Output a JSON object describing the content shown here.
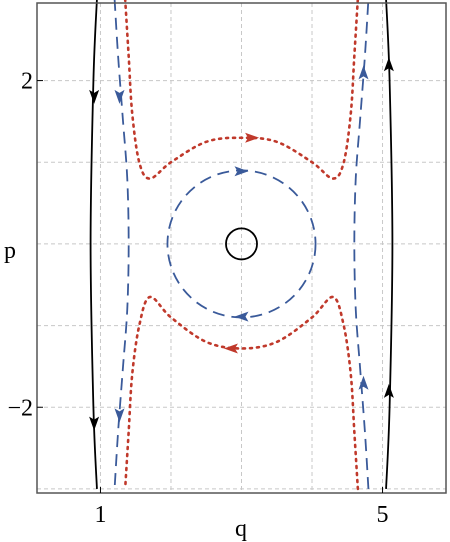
{
  "chart_data": {
    "type": "line",
    "title": "",
    "xlabel": "q",
    "ylabel": "p",
    "xlim": [
      0.1,
      5.9
    ],
    "ylim": [
      -3.05,
      2.95
    ],
    "xticks": [
      {
        "value": 1,
        "label": "1"
      },
      {
        "value": 5,
        "label": "5"
      }
    ],
    "yticks": [
      {
        "value": 2,
        "label": "2"
      },
      {
        "value": -2,
        "label": "−2"
      }
    ],
    "gridlines_x": [
      1,
      2,
      3,
      4,
      5
    ],
    "gridlines_y": [
      -3,
      -2,
      -1,
      0,
      1,
      2
    ],
    "grid": true,
    "legend": "none",
    "colors": {
      "black": "#000000",
      "blue": "#3a5a9a",
      "red": "#c0392b",
      "grid": "#c8c8c8",
      "frame": "#555555"
    },
    "series": [
      {
        "style": "solid",
        "color": "black",
        "points": [
          [
            0.95,
            3.0
          ],
          [
            0.9,
            2.0
          ],
          [
            0.86,
            0.0
          ],
          [
            0.9,
            -2.0
          ],
          [
            0.95,
            -3.0
          ]
        ],
        "arrows": [
          [
            0.91,
            1.8,
            "down"
          ],
          [
            0.91,
            -2.2,
            "down"
          ]
        ]
      },
      {
        "style": "solid",
        "color": "black",
        "points": [
          [
            5.05,
            -3.0
          ],
          [
            5.1,
            -2.0
          ],
          [
            5.14,
            0.0
          ],
          [
            5.1,
            2.0
          ],
          [
            5.05,
            3.0
          ]
        ],
        "arrows": [
          [
            5.09,
            -1.8,
            "up"
          ],
          [
            5.09,
            2.2,
            "up"
          ]
        ]
      },
      {
        "style": "dashed",
        "color": "blue",
        "points": [
          [
            1.2,
            3.0
          ],
          [
            1.25,
            2.3
          ],
          [
            1.32,
            1.5
          ],
          [
            1.38,
            0.8
          ],
          [
            1.4,
            0.0
          ],
          [
            1.38,
            -0.8
          ],
          [
            1.32,
            -1.5
          ],
          [
            1.25,
            -2.3
          ],
          [
            1.2,
            -3.0
          ]
        ],
        "arrows": [
          [
            1.27,
            1.8,
            "down"
          ],
          [
            1.27,
            -2.1,
            "down"
          ]
        ]
      },
      {
        "style": "dashed",
        "color": "blue",
        "points": [
          [
            4.8,
            -3.0
          ],
          [
            4.75,
            -2.3
          ],
          [
            4.68,
            -1.5
          ],
          [
            4.62,
            -0.8
          ],
          [
            4.6,
            0.0
          ],
          [
            4.62,
            0.8
          ],
          [
            4.68,
            1.5
          ],
          [
            4.75,
            2.3
          ],
          [
            4.8,
            3.0
          ]
        ],
        "arrows": [
          [
            4.73,
            -1.7,
            "up"
          ],
          [
            4.73,
            2.1,
            "up"
          ]
        ]
      },
      {
        "style": "circle-dashed",
        "color": "blue",
        "center": [
          3.0,
          0.0
        ],
        "radius_q": 1.05,
        "radius_p": 0.9,
        "arrows": [
          [
            3.0,
            0.89,
            "right"
          ],
          [
            3.0,
            -0.89,
            "left"
          ]
        ]
      },
      {
        "style": "dotted",
        "color": "red",
        "points": [
          [
            1.35,
            3.0
          ],
          [
            1.4,
            2.3
          ],
          [
            1.45,
            1.6
          ],
          [
            1.55,
            1.0
          ],
          [
            1.7,
            0.8
          ],
          [
            2.0,
            1.0
          ],
          [
            2.5,
            1.25
          ],
          [
            3.0,
            1.3
          ],
          [
            3.5,
            1.25
          ],
          [
            4.0,
            1.0
          ],
          [
            4.3,
            0.8
          ],
          [
            4.45,
            1.0
          ],
          [
            4.55,
            1.6
          ],
          [
            4.6,
            2.3
          ],
          [
            4.65,
            3.0
          ]
        ],
        "arrows": [
          [
            3.15,
            1.3,
            "right"
          ]
        ]
      },
      {
        "style": "dotted",
        "color": "red",
        "points": [
          [
            4.65,
            -3.0
          ],
          [
            4.6,
            -2.3
          ],
          [
            4.55,
            -1.6
          ],
          [
            4.45,
            -1.0
          ],
          [
            4.3,
            -0.65
          ],
          [
            4.0,
            -0.9
          ],
          [
            3.5,
            -1.2
          ],
          [
            3.0,
            -1.28
          ],
          [
            2.5,
            -1.2
          ],
          [
            2.0,
            -0.9
          ],
          [
            1.7,
            -0.65
          ],
          [
            1.55,
            -1.0
          ],
          [
            1.45,
            -1.6
          ],
          [
            1.4,
            -2.3
          ],
          [
            1.35,
            -3.0
          ]
        ],
        "arrows": [
          [
            2.85,
            -1.28,
            "left"
          ]
        ]
      },
      {
        "style": "circle-solid",
        "color": "black",
        "center": [
          3.0,
          0.0
        ],
        "radius_q": 0.22,
        "radius_p": 0.19
      }
    ]
  }
}
